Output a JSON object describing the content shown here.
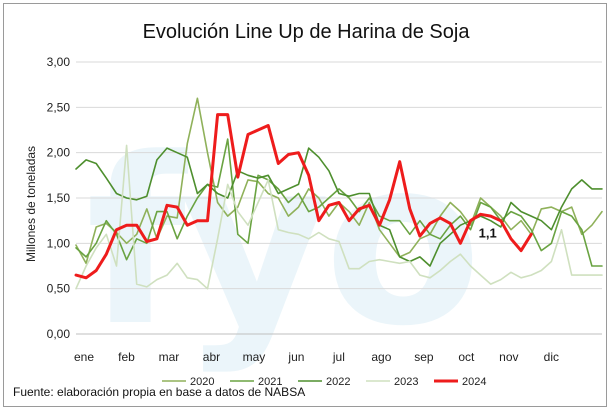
{
  "chart_data": {
    "type": "line",
    "title": "Evolución Line Up de Harina de Soja",
    "xlabel": "",
    "ylabel": "Millones de toneladas",
    "ylim": [
      0,
      3.0
    ],
    "yticks": [
      "0,00",
      "0,50",
      "1,00",
      "1,50",
      "2,00",
      "2,50",
      "3,00"
    ],
    "ytick_values": [
      0,
      0.5,
      1.0,
      1.5,
      2.0,
      2.5,
      3.0
    ],
    "xlim": [
      0,
      52
    ],
    "months": [
      "ene",
      "feb",
      "mar",
      "abr",
      "may",
      "jun",
      "jul",
      "ago",
      "sep",
      "oct",
      "nov",
      "dic"
    ],
    "month_positions": [
      0,
      4.2,
      8.4,
      12.6,
      16.8,
      21,
      25.2,
      29.4,
      33.6,
      37.8,
      42,
      46.2
    ],
    "legend_position": "bottom",
    "annotation": {
      "text": "1,1",
      "x": 40,
      "y": 1.0
    },
    "source": "Fuente: elaboración propia en base a datos de NABSA",
    "watermark": "fyo",
    "series": [
      {
        "name": "2020",
        "color": "#8fb15a",
        "width": 1.6,
        "values": [
          0.98,
          0.78,
          1.18,
          1.22,
          1.12,
          1.0,
          1.1,
          1.38,
          1.05,
          1.3,
          1.28,
          2.1,
          2.6,
          2.0,
          1.45,
          1.3,
          1.4,
          1.7,
          1.68,
          1.55,
          1.5,
          1.3,
          1.4,
          1.6,
          1.5,
          1.3,
          1.45,
          1.35,
          1.2,
          1.45,
          1.15,
          1.0,
          0.85,
          0.9,
          1.05,
          1.1,
          1.3,
          1.45,
          1.35,
          1.2,
          1.5,
          1.4,
          1.3,
          1.15,
          1.25,
          1.1,
          1.38,
          1.4,
          1.35,
          1.4,
          1.1,
          1.2,
          1.35
        ]
      },
      {
        "name": "2021",
        "color": "#6aa342",
        "width": 1.6,
        "values": [
          0.95,
          0.85,
          1.0,
          1.25,
          1.1,
          0.82,
          1.05,
          1.0,
          1.35,
          1.35,
          1.05,
          1.3,
          1.5,
          1.65,
          1.62,
          2.15,
          1.1,
          1.0,
          1.75,
          1.7,
          1.6,
          1.45,
          1.55,
          1.35,
          1.4,
          1.5,
          1.6,
          1.5,
          1.35,
          1.5,
          1.3,
          1.25,
          1.25,
          1.1,
          1.25,
          1.1,
          1.05,
          1.2,
          1.3,
          1.15,
          1.45,
          1.4,
          1.25,
          1.35,
          1.3,
          1.15,
          0.92,
          1.0,
          1.35,
          1.3,
          1.15,
          0.75,
          0.75
        ]
      },
      {
        "name": "2022",
        "color": "#4e8f2e",
        "width": 1.6,
        "values": [
          1.82,
          1.92,
          1.88,
          1.72,
          1.55,
          1.5,
          1.48,
          1.52,
          1.92,
          2.05,
          2.0,
          1.95,
          1.55,
          1.65,
          1.55,
          1.5,
          1.8,
          1.75,
          1.72,
          1.75,
          1.55,
          1.6,
          1.65,
          2.05,
          1.95,
          1.8,
          1.55,
          1.52,
          1.55,
          1.55,
          1.2,
          1.15,
          0.85,
          0.8,
          0.85,
          0.75,
          1.0,
          1.1,
          1.2,
          1.25,
          1.3,
          1.25,
          1.18,
          1.45,
          1.35,
          1.3,
          1.25,
          1.15,
          1.4,
          1.6,
          1.7,
          1.6,
          1.6
        ]
      },
      {
        "name": "2023",
        "color": "#cfe0bf",
        "width": 1.6,
        "values": [
          0.5,
          0.75,
          0.95,
          1.1,
          0.75,
          2.08,
          0.55,
          0.52,
          0.6,
          0.65,
          0.78,
          0.62,
          0.6,
          0.5,
          1.05,
          1.65,
          1.35,
          1.2,
          1.45,
          1.7,
          1.15,
          1.12,
          1.1,
          1.05,
          1.12,
          1.05,
          1.02,
          0.72,
          0.72,
          0.8,
          0.82,
          0.8,
          0.78,
          0.8,
          0.65,
          0.62,
          0.7,
          0.8,
          0.88,
          0.75,
          0.65,
          0.55,
          0.6,
          0.68,
          0.62,
          0.65,
          0.7,
          0.8,
          1.15,
          0.65,
          0.65,
          0.65,
          0.65
        ]
      },
      {
        "name": "2024",
        "color": "#ee1c1c",
        "width": 3,
        "values": [
          0.65,
          0.62,
          0.7,
          0.88,
          1.15,
          1.2,
          1.2,
          1.02,
          1.05,
          1.42,
          1.4,
          1.2,
          1.25,
          1.25,
          2.42,
          2.42,
          1.73,
          2.2,
          2.25,
          2.3,
          1.88,
          1.98,
          2.0,
          1.75,
          1.25,
          1.42,
          1.45,
          1.25,
          1.38,
          1.42,
          1.2,
          1.48,
          1.9,
          1.38,
          1.08,
          1.22,
          1.28,
          1.22,
          1.0,
          1.25,
          1.32,
          1.3,
          1.25,
          1.05,
          0.92,
          1.1,
          null,
          null,
          null,
          null,
          null,
          null,
          null
        ]
      }
    ]
  }
}
